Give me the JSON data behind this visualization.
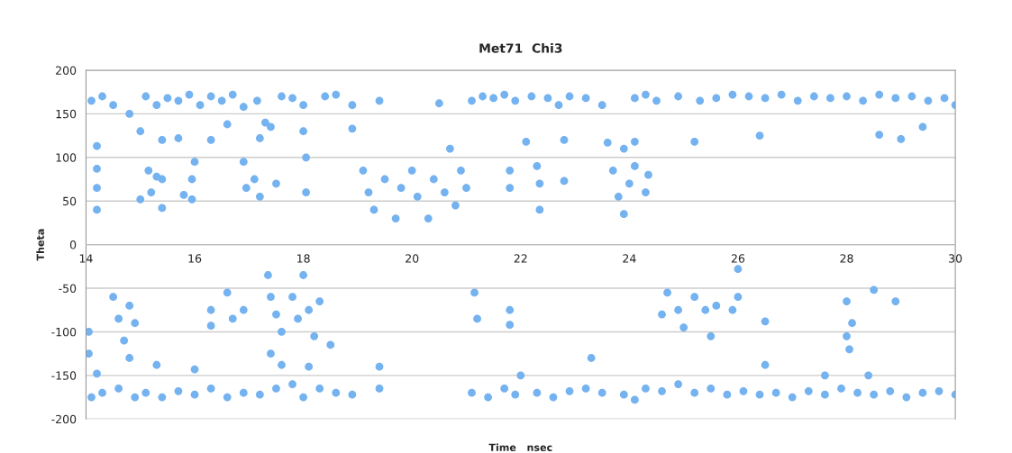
{
  "chart_data": {
    "type": "scatter",
    "title": "Met71  Chi3",
    "xlabel": "Time   nsec",
    "ylabel": "Theta",
    "xlim": [
      14,
      30
    ],
    "xticks": [
      14,
      16,
      18,
      20,
      22,
      24,
      26,
      28,
      30
    ],
    "ylim": [
      -200,
      200
    ],
    "yticks": [
      -200,
      -150,
      -100,
      -50,
      0,
      50,
      100,
      150,
      200
    ],
    "grid": "y",
    "marker": "circle",
    "legend": false,
    "series": [
      {
        "color": "#74b2f0",
        "x": [
          14.1,
          14.3,
          14.5,
          14.8,
          15.1,
          15.3,
          15.5,
          15.7,
          15.9,
          16.1,
          16.3,
          16.5,
          16.7,
          16.9,
          17.15,
          17.3,
          17.6,
          17.8,
          18.0,
          18.4,
          18.6,
          18.9,
          19.4,
          20.5,
          21.1,
          21.3,
          21.5,
          21.7,
          21.9,
          22.2,
          22.5,
          22.7,
          22.9,
          23.2,
          23.5,
          24.1,
          24.3,
          24.5,
          24.9,
          25.3,
          25.6,
          25.9,
          26.2,
          26.5,
          26.8,
          27.1,
          27.4,
          27.7,
          28.0,
          28.3,
          28.6,
          28.9,
          29.2,
          29.5,
          29.8,
          30.0,
          15.0,
          15.4,
          15.7,
          16.3,
          16.6,
          17.2,
          17.4,
          18.0,
          18.9,
          22.1,
          22.8,
          23.6,
          23.9,
          24.1,
          25.2,
          26.4,
          28.6,
          29.0,
          29.4,
          14.2,
          14.2,
          14.2,
          14.2,
          15.0,
          15.15,
          15.2,
          15.3,
          15.4,
          15.4,
          15.8,
          15.95,
          15.95,
          16.0,
          16.9,
          16.95,
          17.1,
          17.2,
          17.5,
          18.05,
          18.05,
          19.1,
          19.2,
          19.3,
          19.5,
          19.7,
          19.8,
          20.0,
          20.1,
          20.3,
          20.4,
          20.6,
          20.7,
          20.8,
          20.9,
          21.0,
          21.8,
          21.8,
          22.3,
          22.35,
          22.35,
          22.8,
          23.7,
          23.8,
          23.9,
          24.0,
          24.1,
          24.3,
          24.35,
          14.05,
          14.05,
          14.5,
          14.6,
          14.7,
          14.8,
          14.9,
          14.8,
          16.3,
          16.3,
          16.6,
          16.7,
          16.9,
          17.35,
          17.4,
          17.5,
          17.6,
          17.4,
          17.8,
          17.9,
          18.0,
          18.1,
          18.2,
          18.3,
          18.5,
          21.15,
          21.2,
          21.8,
          21.8,
          24.6,
          24.7,
          24.9,
          25.0,
          25.2,
          25.4,
          25.5,
          25.6,
          25.9,
          26.0,
          26.0,
          26.5,
          28.0,
          28.0,
          28.1,
          28.5,
          28.9,
          14.1,
          14.3,
          14.6,
          14.9,
          15.1,
          15.4,
          15.7,
          16.0,
          16.3,
          16.6,
          16.9,
          17.2,
          17.5,
          17.8,
          18.0,
          18.3,
          18.6,
          18.9,
          19.4,
          21.1,
          21.4,
          21.7,
          21.9,
          22.3,
          22.6,
          22.9,
          23.2,
          23.5,
          23.9,
          24.1,
          24.3,
          24.6,
          24.9,
          25.2,
          25.5,
          25.8,
          26.1,
          26.4,
          26.7,
          27.0,
          27.3,
          27.6,
          27.9,
          28.2,
          28.5,
          28.8,
          29.1,
          29.4,
          29.7,
          30.0,
          14.2,
          15.3,
          16.0,
          17.6,
          18.1,
          19.4,
          22.0,
          23.3,
          26.5,
          27.6,
          28.05,
          28.4
        ],
        "values": [
          165,
          170,
          160,
          150,
          170,
          160,
          168,
          165,
          172,
          160,
          170,
          165,
          172,
          158,
          165,
          140,
          170,
          168,
          160,
          170,
          172,
          160,
          165,
          162,
          165,
          170,
          168,
          172,
          165,
          170,
          168,
          160,
          170,
          168,
          160,
          168,
          172,
          165,
          170,
          165,
          168,
          172,
          170,
          168,
          172,
          165,
          170,
          168,
          170,
          165,
          172,
          168,
          170,
          165,
          168,
          160,
          130,
          120,
          122,
          120,
          138,
          122,
          135,
          130,
          133,
          118,
          120,
          117,
          110,
          118,
          118,
          125,
          126,
          121,
          135,
          113,
          87,
          65,
          40,
          52,
          85,
          60,
          78,
          75,
          42,
          57,
          75,
          52,
          95,
          95,
          65,
          75,
          55,
          70,
          100,
          60,
          85,
          60,
          40,
          75,
          30,
          65,
          85,
          55,
          30,
          75,
          60,
          110,
          45,
          85,
          65,
          85,
          65,
          90,
          70,
          40,
          73,
          85,
          55,
          35,
          70,
          90,
          60,
          80,
          -100,
          -125,
          -60,
          -85,
          -110,
          -70,
          -90,
          -130,
          -75,
          -93,
          -55,
          -85,
          -75,
          -35,
          -60,
          -80,
          -100,
          -125,
          -60,
          -85,
          -35,
          -75,
          -105,
          -65,
          -115,
          -55,
          -85,
          -75,
          -92,
          -80,
          -55,
          -75,
          -95,
          -60,
          -75,
          -105,
          -70,
          -75,
          -28,
          -60,
          -88,
          -65,
          -105,
          -90,
          -52,
          -65,
          -175,
          -170,
          -165,
          -175,
          -170,
          -175,
          -168,
          -172,
          -165,
          -175,
          -170,
          -172,
          -165,
          -160,
          -175,
          -165,
          -170,
          -172,
          -165,
          -170,
          -175,
          -165,
          -172,
          -170,
          -175,
          -168,
          -165,
          -170,
          -172,
          -178,
          -165,
          -168,
          -160,
          -170,
          -165,
          -172,
          -168,
          -172,
          -170,
          -175,
          -168,
          -172,
          -165,
          -170,
          -172,
          -168,
          -175,
          -170,
          -168,
          -172,
          -148,
          -138,
          -143,
          -138,
          -140,
          -140,
          -150,
          -130,
          -138,
          -150,
          -120,
          -150
        ]
      }
    ]
  }
}
